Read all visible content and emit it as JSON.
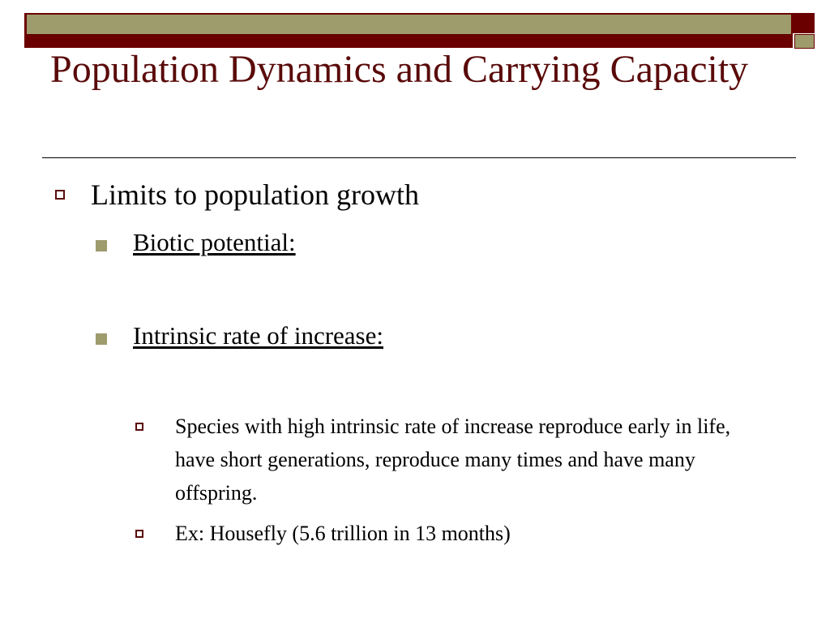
{
  "title": "Population Dynamics and Carrying Capacity",
  "bullets": {
    "level1": "Limits to population growth",
    "biotic_potential": "Biotic potential:",
    "intrinsic_rate": "Intrinsic rate of increase:",
    "species_note": "Species with high intrinsic rate of increase reproduce early in life, have short generations, reproduce many times and have many offspring.",
    "example": "Ex: Housefly (5.6 trillion in 13 months)"
  },
  "colors": {
    "band_red": "#6b0000",
    "band_olive": "#9e9b6d",
    "title_color": "#5a0a0a"
  }
}
